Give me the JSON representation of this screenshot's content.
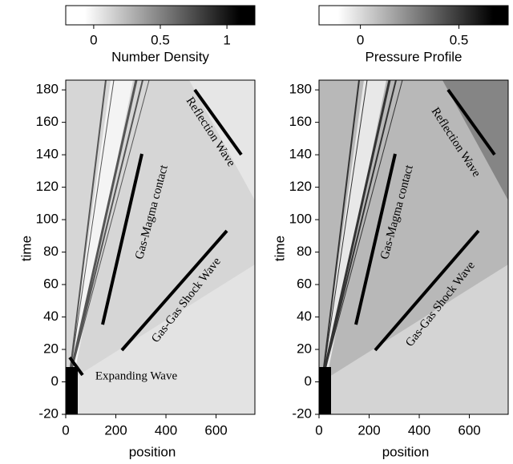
{
  "chart_data": [
    {
      "type": "heatmap",
      "colorbar_label": "Number Density",
      "colorbar_lim": [
        -0.21,
        1.21
      ],
      "colorbar_ticks": [
        0,
        0.5,
        1
      ],
      "xlabel": "position",
      "ylabel": "time",
      "xlim": [
        0,
        755
      ],
      "ylim": [
        -20,
        186
      ],
      "xticks": [
        0,
        200,
        400,
        600
      ],
      "yticks": [
        -20,
        0,
        20,
        40,
        60,
        80,
        100,
        120,
        140,
        160,
        180
      ],
      "annotations": [
        "Reflection Wave",
        "Gas-Magma contact",
        "Gas-Gas Shock Wave",
        "Expanding Wave"
      ]
    },
    {
      "type": "heatmap",
      "colorbar_label": "Pressure Profile",
      "colorbar_lim": [
        -0.21,
        0.75
      ],
      "colorbar_ticks": [
        0,
        0.5
      ],
      "xlabel": "position",
      "ylabel": "time",
      "xlim": [
        0,
        755
      ],
      "ylim": [
        -20,
        186
      ],
      "xticks": [
        0,
        200,
        400,
        600
      ],
      "yticks": [
        -20,
        0,
        20,
        40,
        60,
        80,
        100,
        120,
        140,
        160,
        180
      ],
      "annotations": [
        "Reflection Wave",
        "Gas-Magma contact",
        "Gas-Gas Shock Wave"
      ]
    }
  ]
}
